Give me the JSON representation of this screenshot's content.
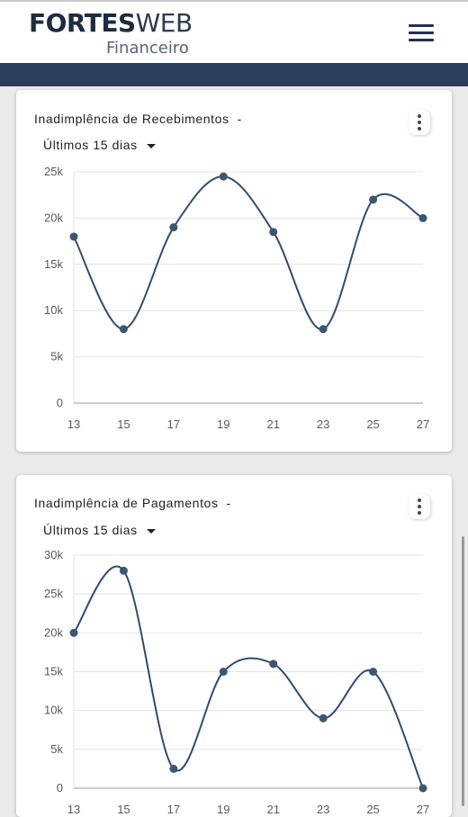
{
  "header": {
    "logo_bold": "FORTES",
    "logo_thin": "WEB",
    "logo_sub": "Financeiro"
  },
  "colors": {
    "accent": "#2b3e5c",
    "line": "#2f4d70",
    "point": "#3d5673"
  },
  "chart_data": [
    {
      "type": "line",
      "title": "Inadimplência de Recebimentos",
      "title_suffix": "-",
      "period": "Últimos 15 dias",
      "x": [
        13,
        15,
        17,
        19,
        21,
        23,
        25,
        27
      ],
      "y": [
        18000,
        8000,
        19000,
        24500,
        18500,
        8000,
        22000,
        20000
      ],
      "x_tick_labels": [
        "13",
        "15",
        "17",
        "19",
        "21",
        "23",
        "25",
        "27"
      ],
      "y_tick_labels": [
        "0",
        "5k",
        "10k",
        "15k",
        "20k",
        "25k"
      ],
      "ylim": [
        0,
        25000
      ],
      "grid": true
    },
    {
      "type": "line",
      "title": "Inadimplência de Pagamentos",
      "title_suffix": "-",
      "period": "Últimos 15 dias",
      "x": [
        13,
        15,
        17,
        19,
        21,
        23,
        25,
        27
      ],
      "y": [
        20000,
        28000,
        2500,
        15000,
        16000,
        9000,
        15000,
        0
      ],
      "x_tick_labels": [
        "13",
        "15",
        "17",
        "19",
        "21",
        "23",
        "25",
        "27"
      ],
      "y_tick_labels": [
        "0",
        "5k",
        "10k",
        "15k",
        "20k",
        "25k",
        "30k"
      ],
      "ylim": [
        0,
        30000
      ],
      "grid": true
    }
  ]
}
